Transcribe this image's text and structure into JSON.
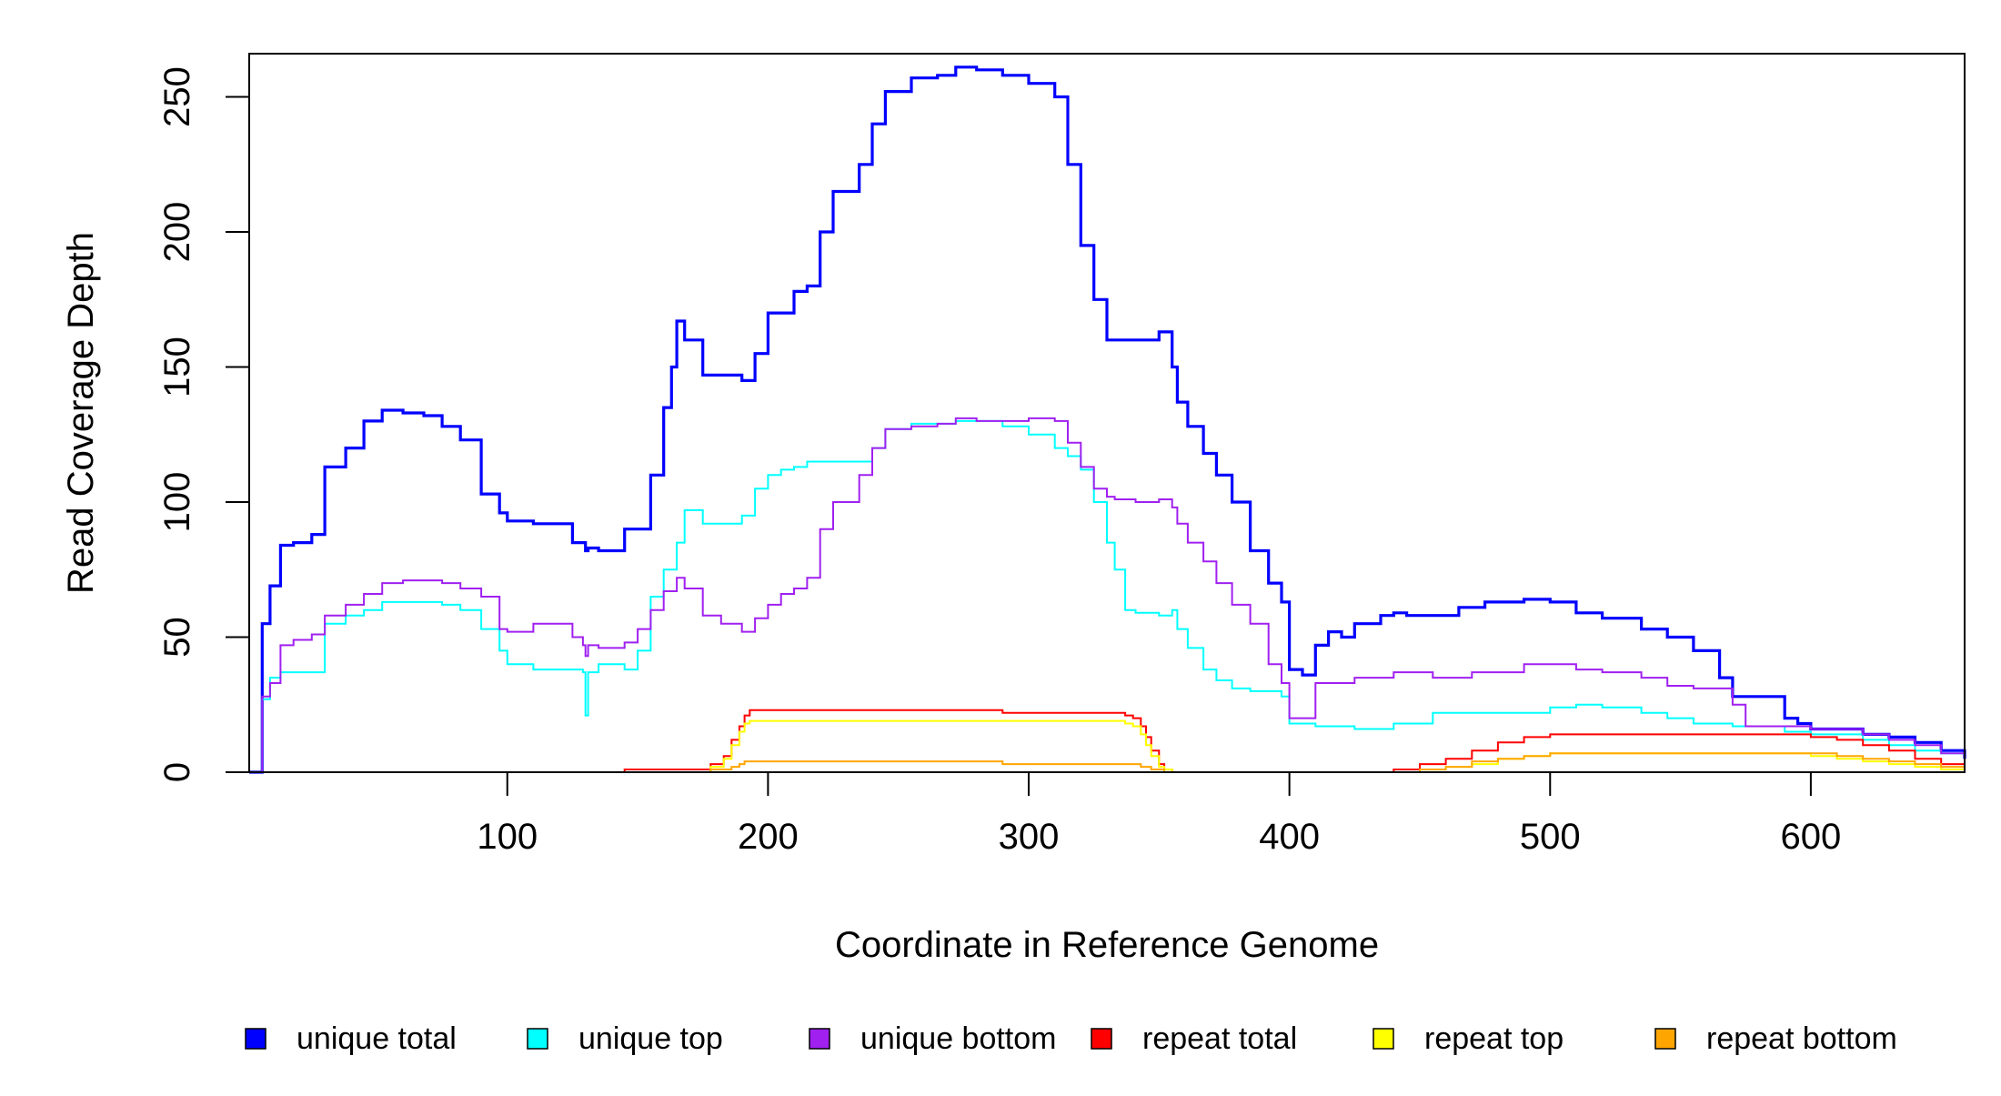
{
  "chart_data": {
    "type": "line",
    "title": "",
    "xlabel": "Coordinate in Reference Genome",
    "ylabel": "Read Coverage Depth",
    "xlim": [
      1,
      659
    ],
    "ylim": [
      0,
      266
    ],
    "x_ticks": [
      100,
      200,
      300,
      400,
      500,
      600
    ],
    "x_tick_labels": [
      "100",
      "200",
      "300",
      "400",
      "500",
      "600"
    ],
    "y_ticks": [
      0,
      50,
      100,
      150,
      200,
      250
    ],
    "y_tick_labels": [
      "0",
      "50",
      "100",
      "150",
      "200",
      "250"
    ],
    "grid": false,
    "legend_position": "bottom",
    "series": [
      {
        "name": "unique total",
        "color": "#0000ff",
        "x": [
          1,
          6,
          9,
          13,
          18,
          25,
          30,
          38,
          45,
          52,
          60,
          68,
          75,
          82,
          90,
          97,
          100,
          110,
          125,
          130,
          131,
          135,
          145,
          155,
          160,
          163,
          165,
          168,
          175,
          182,
          190,
          195,
          200,
          210,
          215,
          220,
          225,
          235,
          240,
          245,
          255,
          265,
          272,
          280,
          290,
          300,
          310,
          315,
          320,
          325,
          330,
          333,
          337,
          341,
          350,
          355,
          357,
          361,
          367,
          372,
          378,
          385,
          392,
          397,
          400,
          405,
          410,
          415,
          420,
          425,
          435,
          440,
          445,
          455,
          465,
          475,
          490,
          500,
          510,
          520,
          535,
          545,
          555,
          565,
          570,
          575,
          590,
          595,
          600,
          620,
          630,
          640,
          650,
          659
        ],
        "y": [
          0,
          55,
          69,
          84,
          85,
          88,
          113,
          120,
          130,
          134,
          133,
          132,
          128,
          123,
          103,
          96,
          93,
          92,
          85,
          82,
          83,
          82,
          90,
          110,
          135,
          150,
          167,
          160,
          147,
          147,
          145,
          155,
          170,
          178,
          180,
          200,
          215,
          225,
          240,
          252,
          257,
          258,
          261,
          260,
          258,
          255,
          250,
          225,
          195,
          175,
          160,
          160,
          160,
          160,
          163,
          150,
          137,
          128,
          118,
          110,
          100,
          82,
          70,
          63,
          38,
          36,
          47,
          52,
          50,
          55,
          58,
          59,
          58,
          58,
          61,
          63,
          64,
          63,
          59,
          57,
          53,
          50,
          45,
          35,
          28,
          28,
          20,
          18,
          16,
          14,
          13,
          11,
          8,
          5
        ]
      },
      {
        "name": "unique top",
        "color": "#00ffff",
        "x": [
          1,
          6,
          9,
          13,
          18,
          25,
          30,
          38,
          45,
          52,
          60,
          68,
          75,
          82,
          90,
          97,
          100,
          110,
          125,
          129,
          130,
          131,
          135,
          145,
          150,
          155,
          160,
          165,
          168,
          175,
          182,
          190,
          195,
          200,
          205,
          210,
          215,
          220,
          225,
          235,
          240,
          245,
          255,
          265,
          272,
          280,
          290,
          300,
          310,
          315,
          320,
          325,
          330,
          333,
          337,
          341,
          350,
          355,
          357,
          361,
          367,
          372,
          378,
          385,
          392,
          397,
          400,
          410,
          425,
          440,
          455,
          470,
          490,
          500,
          510,
          520,
          535,
          545,
          555,
          570,
          590,
          600,
          620,
          630,
          640,
          650,
          659
        ],
        "y": [
          0,
          27,
          35,
          37,
          37,
          37,
          55,
          58,
          60,
          63,
          63,
          63,
          62,
          60,
          53,
          45,
          40,
          38,
          38,
          37,
          21,
          37,
          40,
          38,
          45,
          65,
          75,
          85,
          97,
          92,
          92,
          95,
          105,
          110,
          112,
          113,
          115,
          115,
          115,
          115,
          120,
          127,
          129,
          129,
          130,
          130,
          128,
          125,
          120,
          117,
          112,
          100,
          85,
          75,
          60,
          59,
          58,
          60,
          53,
          46,
          38,
          34,
          31,
          30,
          30,
          28,
          18,
          17,
          16,
          18,
          22,
          22,
          22,
          24,
          25,
          24,
          22,
          20,
          18,
          17,
          15,
          14,
          12,
          10,
          8,
          7,
          5
        ]
      },
      {
        "name": "unique bottom",
        "color": "#a020f0",
        "x": [
          1,
          6,
          9,
          13,
          18,
          25,
          30,
          38,
          45,
          52,
          60,
          68,
          75,
          82,
          90,
          97,
          100,
          110,
          125,
          129,
          130,
          131,
          135,
          145,
          150,
          155,
          160,
          165,
          168,
          175,
          182,
          190,
          195,
          200,
          205,
          210,
          215,
          220,
          225,
          235,
          240,
          245,
          255,
          265,
          272,
          280,
          290,
          300,
          310,
          315,
          320,
          325,
          330,
          333,
          337,
          341,
          350,
          355,
          357,
          361,
          367,
          372,
          378,
          385,
          392,
          397,
          400,
          410,
          425,
          440,
          455,
          470,
          490,
          500,
          510,
          520,
          535,
          545,
          555,
          570,
          575,
          590,
          600,
          620,
          630,
          640,
          650,
          659
        ],
        "y": [
          0,
          28,
          33,
          47,
          49,
          51,
          58,
          62,
          66,
          70,
          71,
          71,
          70,
          68,
          65,
          53,
          52,
          55,
          50,
          47,
          43,
          47,
          46,
          48,
          53,
          60,
          67,
          72,
          68,
          58,
          55,
          52,
          57,
          62,
          66,
          68,
          72,
          90,
          100,
          110,
          120,
          127,
          128,
          129,
          131,
          130,
          130,
          131,
          130,
          122,
          113,
          105,
          102,
          101,
          101,
          100,
          101,
          98,
          92,
          85,
          78,
          70,
          62,
          55,
          40,
          33,
          20,
          33,
          35,
          37,
          35,
          37,
          40,
          40,
          38,
          37,
          35,
          32,
          31,
          25,
          17,
          17,
          16,
          14,
          12,
          10,
          7,
          4
        ]
      },
      {
        "name": "repeat total",
        "color": "#ff0000",
        "x": [
          1,
          140,
          145,
          170,
          178,
          183,
          186,
          189,
          191,
          193,
          195,
          200,
          220,
          240,
          260,
          280,
          290,
          300,
          320,
          330,
          333,
          337,
          340,
          343,
          345,
          347,
          350,
          352,
          355,
          360,
          430,
          440,
          450,
          460,
          470,
          480,
          490,
          500,
          520,
          540,
          560,
          580,
          600,
          610,
          620,
          630,
          640,
          650,
          659
        ],
        "y": [
          0,
          0,
          1,
          1,
          3,
          6,
          12,
          17,
          21,
          23,
          23,
          23,
          23,
          23,
          23,
          23,
          22,
          22,
          22,
          22,
          22,
          21,
          20,
          17,
          13,
          8,
          3,
          1,
          0,
          0,
          0,
          1,
          3,
          5,
          8,
          11,
          13,
          14,
          14,
          14,
          14,
          14,
          13,
          12,
          10,
          8,
          5,
          3,
          1
        ]
      },
      {
        "name": "repeat top",
        "color": "#ffff00",
        "x": [
          1,
          140,
          145,
          170,
          178,
          183,
          186,
          189,
          191,
          193,
          195,
          200,
          220,
          240,
          260,
          280,
          290,
          300,
          320,
          330,
          333,
          337,
          340,
          343,
          345,
          347,
          350,
          352,
          355,
          360,
          430,
          440,
          450,
          460,
          470,
          480,
          490,
          500,
          520,
          540,
          560,
          580,
          600,
          610,
          620,
          630,
          640,
          650,
          659
        ],
        "y": [
          0,
          0,
          0,
          0,
          2,
          5,
          10,
          15,
          18,
          19,
          19,
          19,
          19,
          19,
          19,
          19,
          19,
          19,
          19,
          19,
          19,
          18,
          17,
          14,
          10,
          6,
          2,
          1,
          0,
          0,
          0,
          0,
          1,
          2,
          3,
          5,
          6,
          7,
          7,
          7,
          7,
          7,
          6,
          5,
          4,
          3,
          2,
          1,
          0
        ]
      },
      {
        "name": "repeat bottom",
        "color": "#ffa500",
        "x": [
          1,
          140,
          145,
          170,
          178,
          183,
          186,
          189,
          191,
          193,
          195,
          200,
          220,
          240,
          260,
          280,
          290,
          300,
          320,
          330,
          333,
          337,
          340,
          343,
          345,
          347,
          350,
          352,
          355,
          360,
          430,
          440,
          450,
          460,
          470,
          480,
          490,
          500,
          520,
          540,
          560,
          580,
          600,
          610,
          620,
          630,
          640,
          650,
          659
        ],
        "y": [
          0,
          0,
          0,
          0,
          1,
          1,
          2,
          3,
          4,
          4,
          4,
          4,
          4,
          4,
          4,
          4,
          3,
          3,
          3,
          3,
          3,
          3,
          3,
          2,
          2,
          1,
          1,
          0,
          0,
          0,
          0,
          0,
          1,
          2,
          4,
          5,
          6,
          7,
          7,
          7,
          7,
          7,
          7,
          6,
          5,
          4,
          3,
          2,
          1
        ]
      }
    ]
  }
}
